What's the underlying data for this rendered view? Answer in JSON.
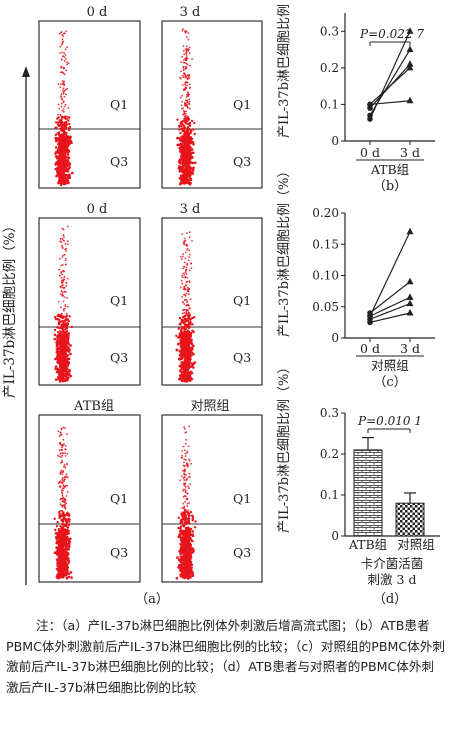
{
  "panel_a": {
    "y_axis_label": "产IL-37b淋巴细胞比例（%）",
    "panel_label": "（a）",
    "rows": [
      {
        "left_title": "0 d",
        "right_title": "3 d"
      },
      {
        "left_title": "0 d",
        "right_title": "3 d"
      },
      {
        "left_title": "ATB组",
        "right_title": "对照组"
      }
    ],
    "quadrant_upper": "Q1",
    "quadrant_lower": "Q3"
  },
  "chart_data": [
    {
      "type": "line",
      "panel_label": "（b）",
      "ylabel": "产IL-37b淋巴细胞比例（%）",
      "x_ticks": [
        "0 d",
        "3 d"
      ],
      "x_group": "ATB组",
      "yticks": [
        "0",
        "0.1",
        "0.2",
        "0.3"
      ],
      "ylim": [
        0,
        0.35
      ],
      "annotation": "P=0.022 7",
      "series": [
        {
          "values": [
            0.06,
            0.3
          ]
        },
        {
          "values": [
            0.07,
            0.25
          ]
        },
        {
          "values": [
            0.09,
            0.21
          ]
        },
        {
          "values": [
            0.1,
            0.2
          ]
        },
        {
          "values": [
            0.1,
            0.11
          ]
        }
      ]
    },
    {
      "type": "line",
      "panel_label": "（c）",
      "ylabel": "产IL-37b淋巴细胞比例（%）",
      "x_ticks": [
        "0 d",
        "3 d"
      ],
      "x_group": "对照组",
      "yticks": [
        "0",
        "0.05",
        "0.10",
        "0.15",
        "0.20"
      ],
      "ylim": [
        0,
        0.2
      ],
      "series": [
        {
          "values": [
            0.035,
            0.17
          ]
        },
        {
          "values": [
            0.04,
            0.09
          ]
        },
        {
          "values": [
            0.035,
            0.065
          ]
        },
        {
          "values": [
            0.03,
            0.055
          ]
        },
        {
          "values": [
            0.025,
            0.04
          ]
        }
      ]
    },
    {
      "type": "bar",
      "panel_label": "（d）",
      "ylabel": "产IL-37b淋巴细胞比例（%）",
      "categories": [
        "ATB组",
        "对照组"
      ],
      "values": [
        0.21,
        0.08
      ],
      "errors": [
        0.03,
        0.025
      ],
      "yticks": [
        "0",
        "0.1",
        "0.2",
        "0.3"
      ],
      "ylim": [
        0,
        0.3
      ],
      "annotation": "P=0.010 1",
      "xlabel_line1": "卡介菌活菌",
      "xlabel_line2": "刺激 3 d"
    }
  ],
  "caption": {
    "lines": [
      "注：（a）产IL-37b淋巴细胞比例体外刺激后增高流式图；",
      "（b）ATB患者PBMC体外刺激前后产IL-37b淋巴细胞比例的比",
      "较；（c）对照组的PBMC体外刺激前后产IL-37b淋巴细胞比例",
      "的比较；（d）ATB患者与对照者的PBMC体外刺激后产IL-37b",
      "淋巴细胞比例的比较"
    ]
  },
  "colors": {
    "dots": "#e8141c",
    "ink": "#222222",
    "panel_border": "#333333"
  }
}
